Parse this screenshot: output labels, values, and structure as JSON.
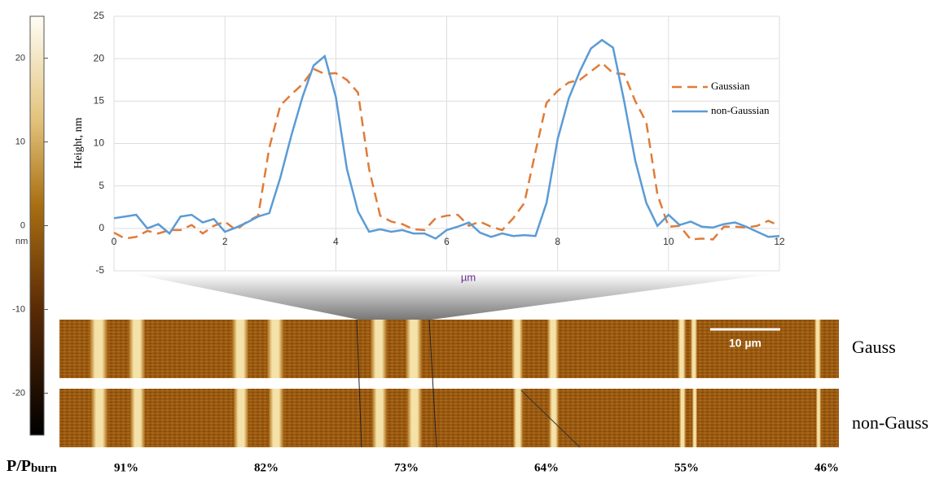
{
  "chart_data": {
    "type": "line",
    "x_label": "µm",
    "y_label": "Height, nm",
    "x": [
      0,
      0.2,
      0.4,
      0.6,
      0.8,
      1,
      1.2,
      1.4,
      1.6,
      1.8,
      2,
      2.2,
      2.4,
      2.6,
      2.8,
      3,
      3.2,
      3.4,
      3.6,
      3.8,
      4,
      4.2,
      4.4,
      4.6,
      4.8,
      5,
      5.2,
      5.4,
      5.6,
      5.8,
      6,
      6.2,
      6.4,
      6.6,
      6.8,
      7,
      7.2,
      7.4,
      7.6,
      7.8,
      8,
      8.2,
      8.4,
      8.6,
      8.8,
      9,
      9.2,
      9.4,
      9.6,
      9.8,
      10,
      10.2,
      10.4,
      10.6,
      10.8,
      11,
      11.2,
      11.4,
      11.6,
      11.8,
      12
    ],
    "series": [
      {
        "name": "Gaussian",
        "color": "#e07b39",
        "dashed": true,
        "values": [
          -0.5,
          -1.2,
          -1,
          -0.3,
          -0.6,
          -0.2,
          -0.2,
          0.4,
          -0.6,
          0.3,
          0.8,
          -0.2,
          0.8,
          1.5,
          9.5,
          14.5,
          15.8,
          17,
          18.8,
          18.2,
          18.3,
          17.5,
          16,
          7,
          1.5,
          0.8,
          0.5,
          -0.1,
          -0.2,
          1.2,
          1.5,
          1.6,
          0.3,
          0.8,
          0.2,
          -0.2,
          1.2,
          3,
          9,
          14.8,
          16.2,
          17.2,
          17.5,
          18.5,
          19.5,
          18.3,
          18.2,
          15,
          12.5,
          4,
          0.2,
          0.3,
          -1.3,
          -1.2,
          -1.3,
          0.2,
          0.2,
          0.1,
          0.3,
          0.9,
          0.3
        ]
      },
      {
        "name": "non-Gaussian",
        "color": "#5b9bd5",
        "dashed": false,
        "values": [
          1.2,
          1.4,
          1.6,
          0,
          0.5,
          -0.6,
          1.4,
          1.6,
          0.7,
          1.1,
          -0.4,
          0.1,
          0.7,
          1.4,
          1.8,
          6,
          11,
          15.5,
          19.2,
          20.3,
          15.5,
          7,
          2,
          -0.4,
          -0.1,
          -0.4,
          -0.2,
          -0.6,
          -0.6,
          -1.2,
          -0.2,
          0.2,
          0.7,
          -0.5,
          -1,
          -0.6,
          -0.9,
          -0.8,
          -0.9,
          3,
          10.5,
          15.3,
          18.5,
          21.2,
          22.2,
          21.3,
          15,
          8,
          3,
          0.3,
          1.6,
          0.4,
          0.8,
          0.2,
          0.1,
          0.5,
          0.7,
          0.2,
          -0.4,
          -1,
          -0.9
        ]
      }
    ],
    "xlim": [
      0,
      12
    ],
    "xticks": [
      0,
      2,
      4,
      6,
      8,
      10,
      12
    ],
    "ylim": [
      -5,
      25
    ],
    "yticks": [
      -5,
      0,
      5,
      10,
      15,
      20,
      25
    ],
    "grid": true,
    "legend": "right"
  },
  "colorbar": {
    "unit": "nm",
    "lim": [
      -25,
      25
    ],
    "ticks": [
      -20,
      -10,
      0,
      10,
      20
    ]
  },
  "images": {
    "rows": [
      "Gauss",
      "non-Gauss"
    ],
    "scale_bar": "10 µm"
  },
  "power": {
    "label": "P/P",
    "subscript": "burn",
    "values": [
      "91%",
      "82%",
      "73%",
      "64%",
      "55%",
      "46%"
    ]
  }
}
